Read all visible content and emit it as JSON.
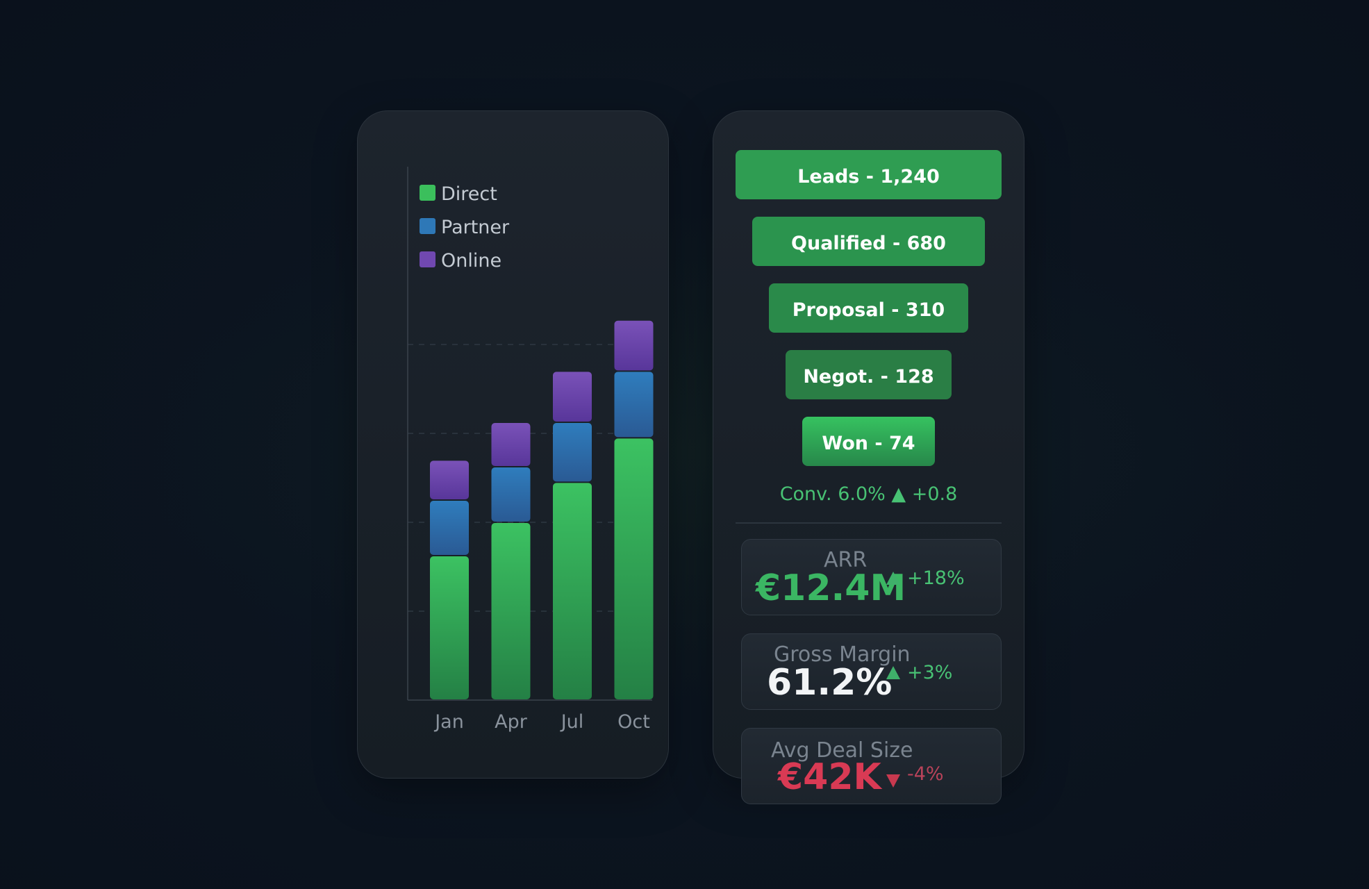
{
  "chart_data": {
    "type": "bar",
    "stacked": true,
    "categories": [
      "Jan",
      "Apr",
      "Jul",
      "Oct"
    ],
    "series": [
      {
        "name": "Direct",
        "color": "#3bbf5c",
        "values": [
          3.25,
          4.0,
          4.9,
          5.9
        ]
      },
      {
        "name": "Partner",
        "color": "#2e78b7",
        "values": [
          1.25,
          1.25,
          1.35,
          1.5
        ]
      },
      {
        "name": "Online",
        "color": "#7048b0",
        "values": [
          0.9,
          1.0,
          1.15,
          1.15
        ]
      }
    ],
    "ylim": [
      0,
      12
    ],
    "gridlines": [
      2,
      4,
      6,
      8
    ],
    "legend_position": "top-left",
    "xlabel": "",
    "ylabel": ""
  },
  "funnel": {
    "stages": [
      {
        "label": "Leads - 1,240",
        "color": "#2f9d52"
      },
      {
        "label": "Qualified - 680",
        "color": "#2b944e"
      },
      {
        "label": "Proposal - 310",
        "color": "#2a8a4a"
      },
      {
        "label": "Negot. - 128",
        "color": "#2a7e45"
      },
      {
        "label": "Won - 74",
        "color": "#32b55c"
      }
    ],
    "conversion": "Conv. 6.0% ▲ +0.8"
  },
  "kpis": [
    {
      "label": "ARR",
      "value": "€12.4M",
      "delta": "+18%",
      "trend": "up",
      "value_color": "#3bb663"
    },
    {
      "label": "Gross Margin",
      "value": "61.2%",
      "delta": "+3%",
      "trend": "up",
      "value_color": "#f2f4f6"
    },
    {
      "label": "Avg Deal Size",
      "value": "€42K",
      "delta": "-4%",
      "trend": "down",
      "value_color": "#d93a54"
    }
  ]
}
